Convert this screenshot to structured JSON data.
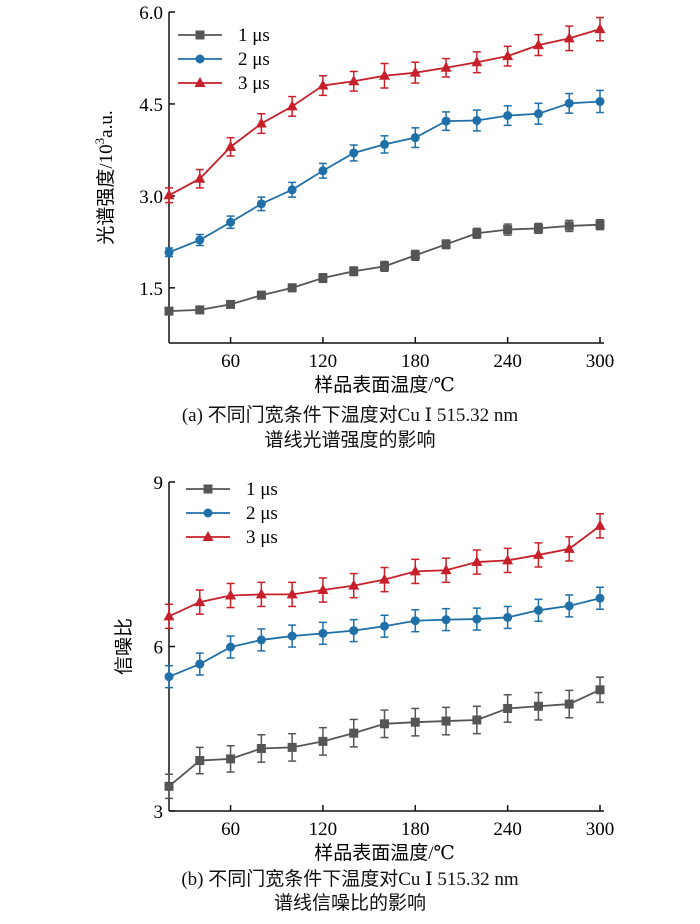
{
  "chart_data": [
    {
      "type": "line",
      "panel": "a",
      "ylabel_main": "光谱强度/10",
      "ylabel_sup": "3",
      "ylabel_tail": "a.u.",
      "xlabel": "样品表面温度/℃",
      "caption_line1": "(a)  不同门宽条件下温度对Cu Ⅰ 515.32 nm",
      "caption_line2": "谱线光谱强度的影响",
      "xlim": [
        20,
        300
      ],
      "ylim": [
        0.6,
        6.0
      ],
      "xticks": [
        60,
        120,
        180,
        240,
        300
      ],
      "yticks": [
        1.5,
        3.0,
        4.5,
        6.0
      ],
      "ytick_labels": [
        "1.5",
        "3.0",
        "4.5",
        "6.0"
      ],
      "legend_position": "top-left",
      "x": [
        20,
        40,
        60,
        80,
        100,
        120,
        140,
        160,
        180,
        200,
        220,
        240,
        260,
        280,
        300
      ],
      "series": [
        {
          "name": "1 μs",
          "color": "#555555",
          "marker": "square",
          "values": [
            1.12,
            1.14,
            1.23,
            1.38,
            1.5,
            1.66,
            1.77,
            1.85,
            2.03,
            2.21,
            2.39,
            2.45,
            2.47,
            2.51,
            2.53
          ],
          "errors": [
            0.05,
            0.06,
            0.05,
            0.06,
            0.06,
            0.07,
            0.07,
            0.08,
            0.08,
            0.07,
            0.08,
            0.09,
            0.08,
            0.09,
            0.08
          ]
        },
        {
          "name": "2 μs",
          "color": "#1f6fa8",
          "marker": "circle",
          "values": [
            2.08,
            2.28,
            2.57,
            2.87,
            3.1,
            3.41,
            3.7,
            3.84,
            3.95,
            4.22,
            4.23,
            4.31,
            4.34,
            4.51,
            4.54
          ],
          "errors": [
            0.07,
            0.09,
            0.1,
            0.11,
            0.12,
            0.12,
            0.13,
            0.14,
            0.16,
            0.15,
            0.17,
            0.16,
            0.17,
            0.16,
            0.18
          ]
        },
        {
          "name": "3 μs",
          "color": "#c8202a",
          "marker": "triangle",
          "values": [
            3.01,
            3.28,
            3.8,
            4.18,
            4.46,
            4.8,
            4.87,
            4.96,
            5.01,
            5.09,
            5.18,
            5.28,
            5.46,
            5.57,
            5.72
          ],
          "errors": [
            0.12,
            0.15,
            0.15,
            0.16,
            0.16,
            0.16,
            0.16,
            0.2,
            0.17,
            0.15,
            0.17,
            0.16,
            0.17,
            0.2,
            0.19
          ]
        }
      ]
    },
    {
      "type": "line",
      "panel": "b",
      "ylabel_main": "信噪比",
      "xlabel": "样品表面温度/℃",
      "caption_line1": "(b)  不同门宽条件下温度对Cu Ⅰ 515.32 nm",
      "caption_line2": "谱线信噪比的影响",
      "xlim": [
        20,
        300
      ],
      "ylim": [
        3,
        9
      ],
      "xticks": [
        60,
        120,
        180,
        240,
        300
      ],
      "yticks": [
        3,
        6,
        9
      ],
      "ytick_labels": [
        "3",
        "6",
        "9"
      ],
      "legend_position": "top-left",
      "x": [
        20,
        40,
        60,
        80,
        100,
        120,
        140,
        160,
        180,
        200,
        220,
        240,
        260,
        280,
        300
      ],
      "series": [
        {
          "name": "1 μs",
          "color": "#555555",
          "marker": "square",
          "values": [
            3.45,
            3.92,
            3.95,
            4.14,
            4.16,
            4.27,
            4.42,
            4.59,
            4.62,
            4.64,
            4.66,
            4.87,
            4.91,
            4.95,
            5.21
          ],
          "errors": [
            0.22,
            0.24,
            0.24,
            0.25,
            0.25,
            0.25,
            0.25,
            0.25,
            0.25,
            0.25,
            0.25,
            0.25,
            0.25,
            0.25,
            0.23
          ]
        },
        {
          "name": "2 μs",
          "color": "#1f6fa8",
          "marker": "circle",
          "values": [
            5.45,
            5.68,
            5.99,
            6.12,
            6.19,
            6.24,
            6.29,
            6.37,
            6.47,
            6.49,
            6.5,
            6.53,
            6.66,
            6.74,
            6.88
          ],
          "errors": [
            0.2,
            0.2,
            0.2,
            0.2,
            0.2,
            0.2,
            0.2,
            0.2,
            0.2,
            0.2,
            0.2,
            0.2,
            0.2,
            0.2,
            0.2
          ]
        },
        {
          "name": "3 μs",
          "color": "#c8202a",
          "marker": "triangle",
          "values": [
            6.55,
            6.81,
            6.93,
            6.95,
            6.95,
            7.03,
            7.11,
            7.22,
            7.37,
            7.39,
            7.54,
            7.57,
            7.67,
            7.78,
            8.2
          ],
          "errors": [
            0.22,
            0.22,
            0.22,
            0.22,
            0.22,
            0.22,
            0.22,
            0.22,
            0.22,
            0.22,
            0.22,
            0.22,
            0.22,
            0.22,
            0.22
          ]
        }
      ]
    }
  ]
}
